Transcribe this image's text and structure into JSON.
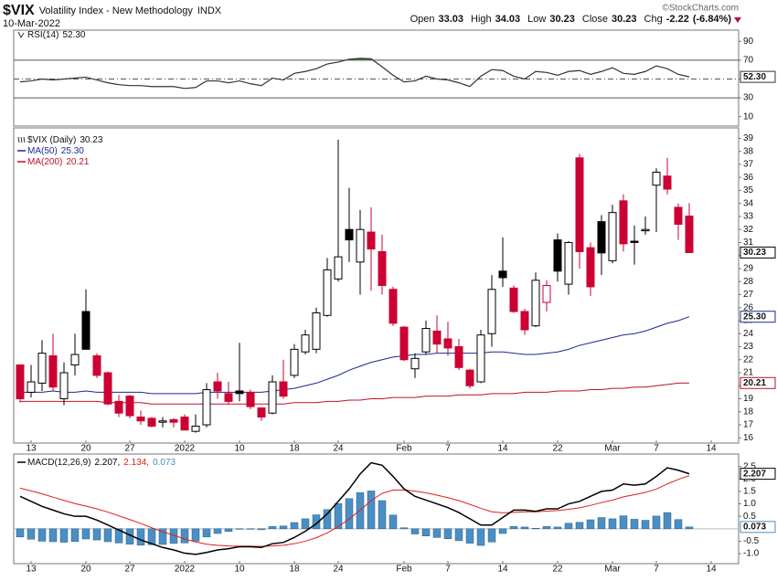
{
  "header": {
    "symbol": "$VIX",
    "name": "Volatility Index - New Methodology",
    "exchange": "INDX",
    "date": "10-Mar-2022",
    "quote": [
      {
        "label": "Open",
        "value": 33.03
      },
      {
        "label": "High",
        "value": 34.03
      },
      {
        "label": "Low",
        "value": 30.23
      },
      {
        "label": "Close",
        "value": 30.23
      },
      {
        "label": "Chg",
        "value": -2.22
      }
    ],
    "chg_pct": "(-6.84%)",
    "source": "©StockCharts.com"
  },
  "chart_data": [
    {
      "type": "line",
      "name": "RSI(14)",
      "last_label": "52.30",
      "color": "#333333",
      "overbought_fill": "#3f7f3f",
      "ylim": [
        0,
        100
      ],
      "yticks": [
        10,
        30,
        50,
        70,
        90
      ],
      "levels": [
        {
          "value": 70,
          "style": "solid"
        },
        {
          "value": 50,
          "style": "dashdot"
        },
        {
          "value": 30,
          "style": "solid"
        }
      ],
      "values": [
        47,
        48,
        50,
        49,
        50,
        51,
        52,
        49,
        46,
        44,
        43,
        43,
        42,
        42,
        42,
        40,
        41,
        48,
        48,
        46,
        48,
        45,
        43,
        51,
        49,
        56,
        58,
        61,
        66,
        68,
        71,
        72,
        71.5,
        63,
        54,
        47,
        48,
        53,
        50,
        49,
        46,
        42,
        53,
        60,
        59,
        53,
        50,
        58,
        57,
        54,
        58,
        59,
        55,
        58,
        62,
        56,
        55,
        58,
        64,
        61,
        55,
        52.3
      ]
    },
    {
      "type": "candlestick",
      "name": "$VIX (Daily)",
      "up_color": "#000000",
      "down_color": "#cc0033",
      "ylim": [
        15.6,
        39.8
      ],
      "yticks": [
        16,
        17,
        18,
        19,
        20,
        21,
        22,
        23,
        24,
        25,
        26,
        27,
        28,
        29,
        30,
        31,
        32,
        33,
        34,
        35,
        36,
        37,
        38,
        39
      ],
      "xticks": [
        {
          "value": 1,
          "label": "13"
        },
        {
          "value": 6,
          "label": "20"
        },
        {
          "value": 10,
          "label": "27"
        },
        {
          "value": 15,
          "label": "2022"
        },
        {
          "value": 20,
          "label": "10"
        },
        {
          "value": 25,
          "label": "18"
        },
        {
          "value": 29,
          "label": "24"
        },
        {
          "value": 35,
          "label": "Feb"
        },
        {
          "value": 39,
          "label": "7"
        },
        {
          "value": 44,
          "label": "14"
        },
        {
          "value": 49,
          "label": "22"
        },
        {
          "value": 54,
          "label": "Mar"
        },
        {
          "value": 58,
          "label": "7"
        },
        {
          "value": 63,
          "label": "14"
        }
      ],
      "open": [
        21.6,
        19.5,
        20.2,
        22.3,
        19.0,
        21.6,
        25.7,
        22.3,
        21.0,
        18.8,
        19.2,
        17.6,
        17.5,
        17.2,
        17.4,
        17.6,
        16.5,
        17.0,
        20.3,
        19.4,
        19.6,
        19.5,
        18.3,
        17.9,
        20.3,
        20.8,
        22.6,
        22.8,
        25.4,
        28.2,
        32.0,
        29.5,
        31.8,
        30.3,
        27.4,
        24.5,
        21.3,
        22.6,
        24.2,
        23.6,
        23.0,
        21.2,
        20.3,
        24.0,
        28.8,
        27.5,
        25.7,
        24.6,
        26.4,
        31.2,
        27.8,
        37.5,
        30.6,
        32.6,
        29.6,
        34.2,
        31.1,
        31.9,
        35.4,
        36.1,
        33.7,
        33.03
      ],
      "high": [
        21.6,
        21.6,
        23.5,
        24.0,
        21.8,
        24.0,
        27.4,
        22.5,
        21.1,
        19.3,
        19.3,
        18.1,
        17.6,
        17.6,
        17.5,
        17.8,
        17.8,
        20.2,
        21.0,
        20.3,
        23.3,
        19.7,
        18.3,
        20.8,
        22.0,
        23.2,
        24.3,
        26.0,
        29.8,
        38.9,
        35.2,
        33.5,
        33.7,
        31.6,
        27.6,
        24.6,
        22.5,
        25.0,
        25.4,
        24.9,
        23.6,
        21.3,
        24.3,
        28.5,
        31.4,
        27.7,
        25.9,
        28.7,
        28.1,
        31.7,
        31.1,
        37.8,
        31.0,
        33.1,
        33.9,
        34.7,
        32.3,
        33.0,
        36.7,
        37.5,
        34.0,
        34.03
      ],
      "low": [
        18.7,
        19.1,
        19.6,
        19.6,
        18.5,
        20.8,
        22.8,
        20.6,
        18.5,
        17.6,
        17.5,
        17.0,
        16.8,
        16.8,
        16.8,
        16.6,
        16.4,
        16.8,
        19.0,
        18.6,
        18.8,
        18.2,
        17.3,
        17.8,
        19.0,
        20.6,
        22.4,
        22.5,
        25.3,
        28.0,
        29.5,
        27.0,
        27.3,
        27.0,
        24.6,
        21.9,
        20.6,
        22.4,
        22.5,
        22.3,
        21.2,
        19.8,
        20.2,
        23.0,
        27.6,
        25.6,
        23.9,
        24.5,
        25.7,
        28.0,
        27.0,
        29.0,
        26.9,
        28.5,
        29.4,
        30.3,
        29.3,
        31.6,
        31.8,
        34.7,
        31.2,
        30.23
      ],
      "close": [
        19.0,
        20.3,
        22.5,
        19.9,
        21.0,
        22.4,
        22.8,
        20.8,
        18.6,
        17.9,
        17.7,
        17.3,
        16.9,
        17.3,
        17.2,
        16.6,
        16.9,
        19.7,
        19.6,
        18.8,
        19.4,
        18.4,
        17.6,
        20.3,
        19.2,
        22.8,
        23.9,
        25.6,
        28.9,
        29.9,
        31.2,
        32.0,
        30.5,
        27.7,
        24.8,
        22.0,
        22.1,
        24.4,
        23.2,
        22.9,
        21.4,
        20.0,
        23.9,
        27.4,
        28.3,
        25.7,
        24.3,
        28.1,
        27.7,
        28.8,
        31.0,
        30.3,
        27.6,
        30.2,
        33.3,
        30.9,
        31.0,
        32.0,
        36.4,
        35.1,
        32.4,
        30.23
      ],
      "series": [
        {
          "name": "MA(50)",
          "last_label": "25.30",
          "color": "#1c2a8c",
          "values": [
            19.5,
            19.5,
            19.5,
            19.6,
            19.5,
            19.5,
            19.6,
            19.5,
            19.5,
            19.5,
            19.5,
            19.5,
            19.4,
            19.4,
            19.4,
            19.4,
            19.4,
            19.5,
            19.5,
            19.5,
            19.5,
            19.5,
            19.5,
            19.6,
            19.7,
            19.8,
            20.0,
            20.2,
            20.5,
            20.8,
            21.2,
            21.5,
            21.8,
            22.0,
            22.2,
            22.3,
            22.4,
            22.4,
            22.5,
            22.5,
            22.5,
            22.5,
            22.5,
            22.6,
            22.6,
            22.5,
            22.4,
            22.4,
            22.5,
            22.6,
            22.8,
            23.1,
            23.3,
            23.5,
            23.7,
            23.9,
            24.0,
            24.2,
            24.5,
            24.8,
            25.0,
            25.3
          ]
        },
        {
          "name": "MA(200)",
          "color": "#c0102a",
          "values": [
            18.8,
            18.8,
            18.8,
            18.8,
            18.8,
            18.8,
            18.8,
            18.8,
            18.7,
            18.7,
            18.7,
            18.7,
            18.6,
            18.6,
            18.6,
            18.6,
            18.6,
            18.6,
            18.6,
            18.6,
            18.6,
            18.6,
            18.6,
            18.6,
            18.6,
            18.7,
            18.7,
            18.7,
            18.8,
            18.8,
            18.9,
            18.9,
            19.0,
            19.0,
            19.1,
            19.1,
            19.1,
            19.2,
            19.2,
            19.2,
            19.3,
            19.3,
            19.3,
            19.4,
            19.4,
            19.4,
            19.5,
            19.5,
            19.5,
            19.6,
            19.6,
            19.6,
            19.7,
            19.7,
            19.8,
            19.8,
            19.9,
            19.9,
            20.0,
            20.1,
            20.2,
            20.21
          ]
        }
      ]
    },
    {
      "type": "macd",
      "name": "MACD(12,26,9)",
      "legend_values": [
        "2.207,",
        "2.134,",
        "0.073"
      ],
      "ylim": [
        -1.4,
        3.0
      ],
      "yticks": [
        {
          "value": -1,
          "label": "-1.0"
        },
        -0.5,
        0.5,
        {
          "value": 1,
          "label": "1.0"
        },
        1.5,
        {
          "value": 2,
          "label": "2.0"
        },
        2.5
      ],
      "series": [
        {
          "name": "MACD",
          "color": "#000000",
          "values": [
            1.3,
            1.1,
            0.9,
            0.75,
            0.6,
            0.5,
            0.5,
            0.35,
            0.15,
            -0.05,
            -0.25,
            -0.45,
            -0.6,
            -0.75,
            -0.85,
            -0.98,
            -1.03,
            -0.95,
            -0.85,
            -0.8,
            -0.72,
            -0.72,
            -0.75,
            -0.6,
            -0.55,
            -0.35,
            -0.1,
            0.2,
            0.6,
            1.1,
            1.6,
            2.2,
            2.65,
            2.55,
            2.1,
            1.6,
            1.3,
            1.15,
            1.0,
            0.85,
            0.65,
            0.4,
            0.15,
            0.15,
            0.45,
            0.75,
            0.75,
            0.7,
            0.8,
            0.8,
            1.0,
            1.1,
            1.3,
            1.5,
            1.55,
            1.8,
            1.75,
            1.8,
            2.1,
            2.45,
            2.35,
            2.207
          ]
        },
        {
          "name": "Signal",
          "color": "#e0201b",
          "values": [
            1.63,
            1.52,
            1.4,
            1.27,
            1.14,
            1.01,
            0.91,
            0.8,
            0.67,
            0.52,
            0.37,
            0.21,
            0.04,
            -0.12,
            -0.26,
            -0.41,
            -0.53,
            -0.62,
            -0.66,
            -0.69,
            -0.7,
            -0.7,
            -0.71,
            -0.69,
            -0.66,
            -0.6,
            -0.5,
            -0.36,
            -0.17,
            0.09,
            0.39,
            0.75,
            1.13,
            1.42,
            1.55,
            1.56,
            1.51,
            1.44,
            1.35,
            1.25,
            1.13,
            0.98,
            0.82,
            0.68,
            0.64,
            0.66,
            0.68,
            0.68,
            0.71,
            0.73,
            0.78,
            0.84,
            0.94,
            1.05,
            1.15,
            1.28,
            1.37,
            1.46,
            1.59,
            1.8,
            1.98,
            2.134
          ]
        },
        {
          "name": "Histogram",
          "color": "#4a8fc4",
          "values": [
            -0.33,
            -0.42,
            -0.5,
            -0.52,
            -0.54,
            -0.51,
            -0.41,
            -0.45,
            -0.52,
            -0.57,
            -0.62,
            -0.66,
            -0.64,
            -0.63,
            -0.59,
            -0.57,
            -0.5,
            -0.33,
            -0.19,
            -0.11,
            -0.02,
            -0.02,
            -0.04,
            0.09,
            0.11,
            0.25,
            0.4,
            0.56,
            0.77,
            1.01,
            1.21,
            1.45,
            1.52,
            1.13,
            0.55,
            0.04,
            -0.21,
            -0.29,
            -0.35,
            -0.4,
            -0.48,
            -0.58,
            -0.67,
            -0.53,
            -0.19,
            0.09,
            0.07,
            0.02,
            0.09,
            0.07,
            0.22,
            0.26,
            0.36,
            0.45,
            0.4,
            0.52,
            0.38,
            0.34,
            0.51,
            0.65,
            0.37,
            0.073
          ]
        }
      ]
    }
  ]
}
